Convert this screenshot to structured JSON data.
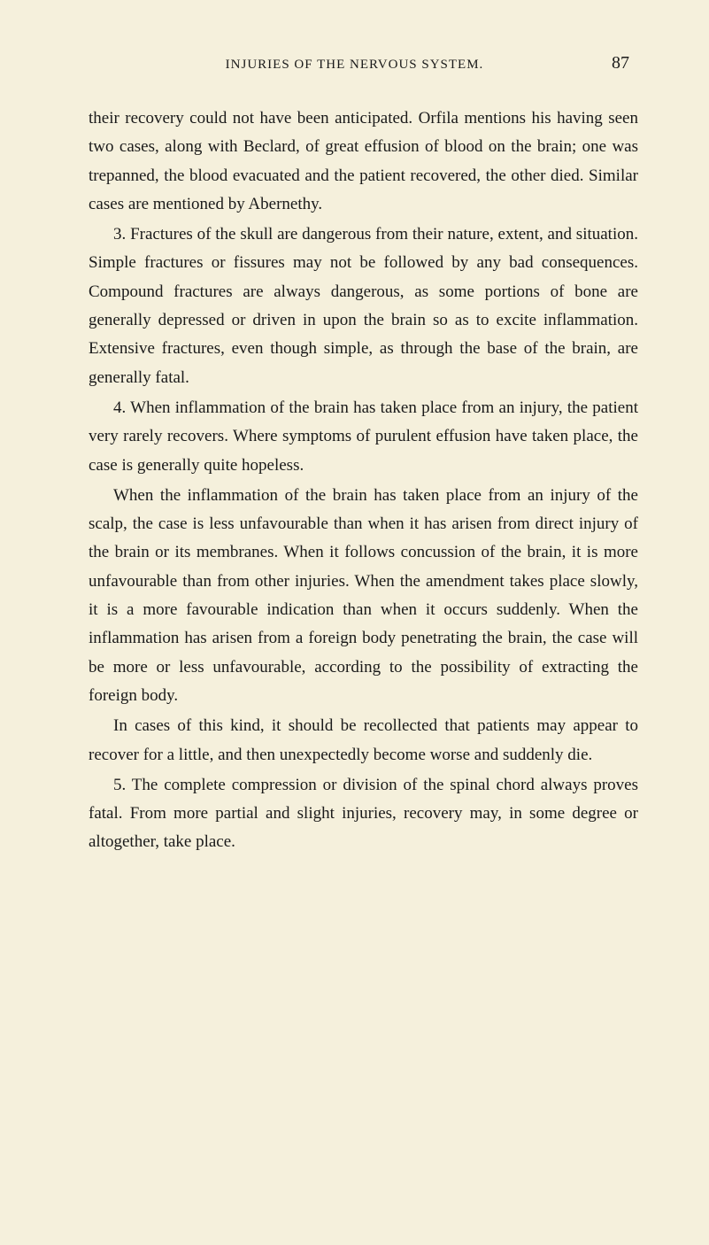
{
  "header": {
    "runningTitle": "INJURIES OF THE NERVOUS SYSTEM.",
    "pageNumber": "87"
  },
  "paragraphs": {
    "p1": "their recovery could not have been anticipated. Orfila mentions his having seen two cases, along with Beclard, of great effusion of blood on the brain; one was trepanned, the blood evacuated and the patient recovered, the other died. Similar cases are mentioned by Abernethy.",
    "p2": "3. Fractures of the skull are dangerous from their nature, extent, and situation. Simple fractures or fissures may not be followed by any bad consequences. Compound fractures are always dangerous, as some portions of bone are generally depressed or driven in upon the brain so as to excite inflammation. Extensive fractures, even though simple, as through the base of the brain, are generally fatal.",
    "p3": "4. When inflammation of the brain has taken place from an injury, the patient very rarely recovers. Where symptoms of purulent effusion have taken place, the case is generally quite hopeless.",
    "p4": "When the inflammation of the brain has taken place from an injury of the scalp, the case is less unfavourable than when it has arisen from direct injury of the brain or its membranes. When it follows concussion of the brain, it is more unfavourable than from other injuries. When the amendment takes place slowly, it is a more favourable indication than when it occurs suddenly. When the inflammation has arisen from a foreign body penetrating the brain, the case will be more or less unfavourable, according to the possibility of extracting the foreign body.",
    "p5": "In cases of this kind, it should be recollected that patients may appear to recover for a little, and then unexpectedly become worse and suddenly die.",
    "p6": "5. The complete compression or division of the spinal chord always proves fatal. From more partial and slight injuries, recovery may, in some degree or altogether, take place."
  },
  "colors": {
    "background": "#f5f0dc",
    "text": "#1a1a1a"
  },
  "typography": {
    "bodyFontSize": 19,
    "headerFontSize": 15,
    "pageNumberFontSize": 20,
    "lineHeight": 1.7
  }
}
